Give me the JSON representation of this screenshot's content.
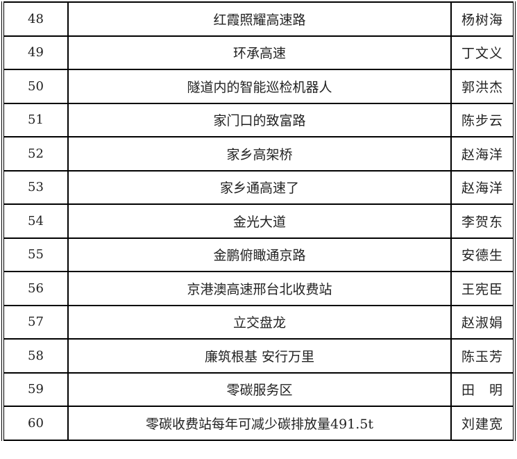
{
  "rows": [
    {
      "no": "48",
      "title": "红霞照耀高速路",
      "author": "杨树海"
    },
    {
      "no": "49",
      "title": "环承高速",
      "author": "丁文义"
    },
    {
      "no": "50",
      "title": "隧道内的智能巡检机器人",
      "author": "郭洪杰"
    },
    {
      "no": "51",
      "title": "家门口的致富路",
      "author": "陈步云"
    },
    {
      "no": "52",
      "title": "家乡高架桥",
      "author": "赵海洋"
    },
    {
      "no": "53",
      "title": "家乡通高速了",
      "author": "赵海洋"
    },
    {
      "no": "54",
      "title": "金光大道",
      "author": "李贺东"
    },
    {
      "no": "55",
      "title": "金鹏俯瞰通京路",
      "author": "安德生"
    },
    {
      "no": "56",
      "title": "京港澳高速邢台北收费站",
      "author": "王宪臣"
    },
    {
      "no": "57",
      "title": "立交盘龙",
      "author": "赵淑娟"
    },
    {
      "no": "58",
      "title": "廉筑根基 安行万里",
      "author": "陈玉芳"
    },
    {
      "no": "59",
      "title": "零碳服务区",
      "author": "田　明"
    },
    {
      "no": "60",
      "title": "零碳收费站每年可减少碳排放量491.5t",
      "author": "刘建宽"
    }
  ]
}
